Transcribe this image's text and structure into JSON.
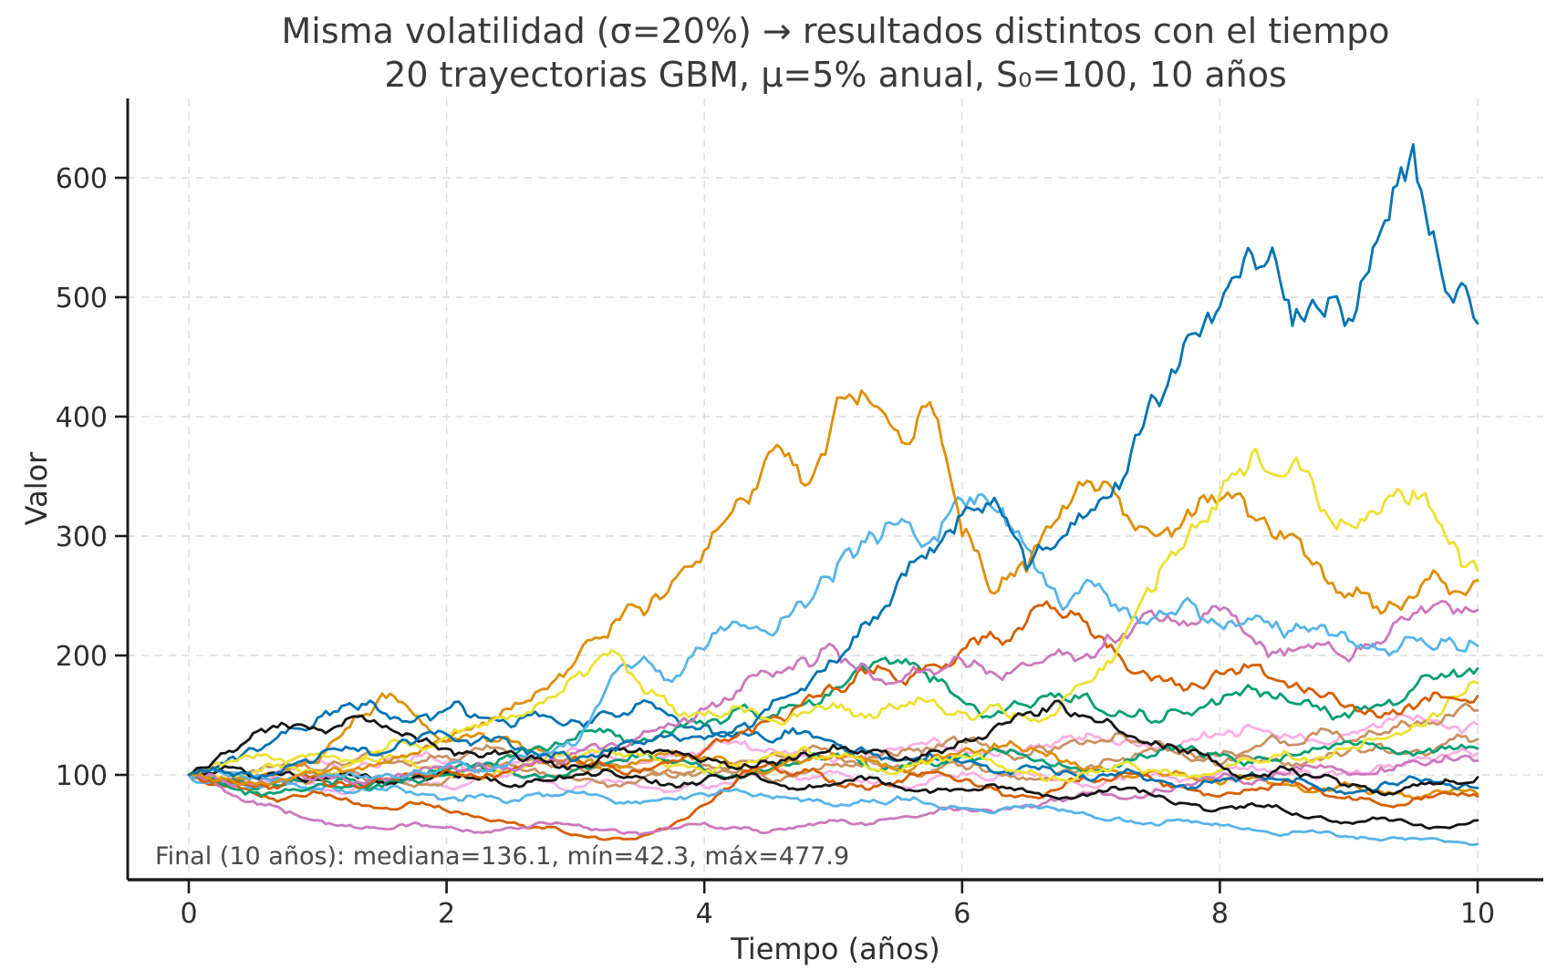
{
  "chart_data": {
    "type": "line",
    "title": "Misma volatilidad (σ=20%) → resultados distintos con el tiempo",
    "subtitle": "20 trayectorias GBM, μ=5% anual, S₀=100, 10 años",
    "xlabel": "Tiempo (años)",
    "ylabel": "Valor",
    "annotation": "Final (10 años): mediana=136.1, mín=42.3, máx=477.9",
    "xticks": [
      0,
      2,
      4,
      6,
      8,
      10
    ],
    "yticks": [
      100,
      200,
      300,
      400,
      500,
      600
    ],
    "xlim": [
      -0.5,
      10.5
    ],
    "ylim": [
      12,
      666
    ],
    "grid": true,
    "grid_style": "dashed",
    "legend_position": "none",
    "x_start_years": 0,
    "x_step_years": 0.25,
    "stats": {
      "median_final": 136.1,
      "min_final": 42.3,
      "max_final": 477.9
    },
    "series": [
      {
        "name": "trayectoria-lightpink-1",
        "color": "#fbafe4",
        "values": [
          100,
          104,
          98,
          104,
          110,
          104,
          110,
          116,
          110,
          104,
          110,
          116,
          122,
          116,
          110,
          116,
          122,
          128,
          122,
          116,
          110,
          116,
          122,
          128,
          122,
          116,
          122,
          128,
          134,
          128,
          122,
          128,
          134,
          140,
          134,
          128,
          134,
          140,
          146,
          140,
          142
        ]
      },
      {
        "name": "trayectoria-lightpink-2",
        "color": "#fbafe4",
        "values": [
          100,
          96,
          90,
          96,
          90,
          86,
          90,
          96,
          90,
          96,
          102,
          96,
          90,
          96,
          90,
          86,
          90,
          96,
          102,
          96,
          102,
          96,
          90,
          96,
          102,
          96,
          102,
          96,
          90,
          96,
          102,
          96,
          102,
          108,
          102,
          96,
          102,
          108,
          112,
          116,
          118
        ]
      },
      {
        "name": "trayectoria-tan-1",
        "color": "#ca9161",
        "values": [
          100,
          98,
          104,
          110,
          104,
          110,
          116,
          110,
          116,
          122,
          116,
          110,
          104,
          110,
          104,
          98,
          104,
          110,
          116,
          122,
          116,
          110,
          116,
          122,
          128,
          122,
          116,
          122,
          128,
          134,
          128,
          122,
          116,
          122,
          128,
          134,
          128,
          134,
          142,
          150,
          154
        ]
      },
      {
        "name": "trayectoria-tan-2",
        "color": "#ca9161",
        "values": [
          100,
          94,
          98,
          92,
          96,
          102,
          96,
          90,
          96,
          102,
          108,
          102,
          96,
          90,
          96,
          102,
          108,
          102,
          96,
          102,
          108,
          114,
          108,
          102,
          108,
          102,
          96,
          102,
          108,
          114,
          120,
          114,
          108,
          114,
          108,
          114,
          120,
          126,
          120,
          126,
          130
        ]
      },
      {
        "name": "trayectoria-verde-2",
        "color": "#029e73",
        "values": [
          100,
          94,
          88,
          92,
          96,
          90,
          94,
          99,
          104,
          110,
          104,
          98,
          104,
          110,
          116,
          110,
          104,
          98,
          104,
          110,
          116,
          110,
          104,
          110,
          116,
          122,
          116,
          110,
          104,
          110,
          116,
          122,
          116,
          110,
          116,
          122,
          128,
          122,
          116,
          122,
          122
        ]
      },
      {
        "name": "trayectoria-dorado-2",
        "color": "#de8f05",
        "values": [
          100,
          104,
          98,
          105,
          110,
          140,
          168,
          150,
          128,
          135,
          128,
          120,
          112,
          105,
          112,
          120,
          115,
          108,
          102,
          110,
          118,
          112,
          105,
          112,
          120,
          126,
          120,
          112,
          105,
          98,
          104,
          98,
          92,
          98,
          92,
          86,
          92,
          86,
          80,
          86,
          84
        ]
      },
      {
        "name": "trayectoria-bermellon-2",
        "color": "#d55e00",
        "values": [
          100,
          92,
          85,
          80,
          85,
          78,
          72,
          76,
          70,
          65,
          60,
          55,
          50,
          46,
          48,
          58,
          75,
          95,
          110,
          102,
          95,
          88,
          95,
          102,
          95,
          88,
          82,
          88,
          95,
          102,
          95,
          88,
          82,
          88,
          95,
          88,
          82,
          75,
          80,
          85,
          82
        ]
      },
      {
        "name": "trayectoria-rosa-2",
        "color": "#cc78bc",
        "values": [
          100,
          90,
          78,
          68,
          62,
          58,
          55,
          60,
          56,
          52,
          56,
          60,
          58,
          54,
          50,
          55,
          60,
          56,
          52,
          57,
          62,
          58,
          64,
          68,
          72,
          68,
          75,
          80,
          85,
          80,
          88,
          92,
          98,
          92,
          100,
          106,
          100,
          106,
          112,
          116,
          112
        ]
      },
      {
        "name": "trayectoria-celeste-2",
        "color": "#56b4e9",
        "values": [
          100,
          95,
          90,
          93,
          88,
          85,
          88,
          84,
          80,
          83,
          78,
          82,
          85,
          80,
          76,
          80,
          84,
          88,
          82,
          78,
          74,
          78,
          82,
          76,
          72,
          68,
          74,
          70,
          66,
          62,
          58,
          62,
          58,
          54,
          50,
          52,
          48,
          45,
          47,
          44,
          42
        ]
      },
      {
        "name": "trayectoria-azul-2",
        "color": "#0173b2",
        "values": [
          100,
          110,
          122,
          135,
          148,
          160,
          152,
          145,
          155,
          148,
          140,
          150,
          145,
          152,
          160,
          150,
          142,
          135,
          128,
          135,
          128,
          120,
          112,
          118,
          110,
          102,
          108,
          100,
          95,
          102,
          95,
          88,
          95,
          102,
          96,
          90,
          85,
          92,
          98,
          92,
          89
        ]
      },
      {
        "name": "trayectoria-amarillo-2",
        "color": "#ece133",
        "values": [
          100,
          96,
          102,
          108,
          102,
          108,
          114,
          108,
          102,
          96,
          102,
          110,
          116,
          122,
          116,
          108,
          102,
          108,
          116,
          122,
          116,
          108,
          102,
          110,
          116,
          110,
          102,
          96,
          104,
          110,
          104,
          98,
          104,
          112,
          120,
          114,
          122,
          130,
          142,
          158,
          177
        ]
      },
      {
        "name": "trayectoria-negro-2",
        "color": "#151515",
        "values": [
          100,
          105,
          98,
          102,
          96,
          100,
          94,
          98,
          102,
          96,
          90,
          95,
          100,
          104,
          98,
          92,
          96,
          100,
          94,
          88,
          92,
          96,
          90,
          85,
          88,
          92,
          86,
          80,
          84,
          88,
          82,
          76,
          72,
          76,
          70,
          65,
          60,
          64,
          58,
          56,
          62
        ]
      },
      {
        "name": "trayectoria-verde-1",
        "color": "#029e73",
        "values": [
          100,
          92,
          85,
          88,
          92,
          96,
          90,
          95,
          100,
          108,
          115,
          122,
          130,
          138,
          128,
          135,
          142,
          155,
          148,
          158,
          172,
          188,
          196,
          178,
          162,
          150,
          158,
          168,
          162,
          152,
          145,
          152,
          160,
          172,
          165,
          158,
          148,
          158,
          172,
          182,
          189
        ]
      },
      {
        "name": "trayectoria-bermellon-1",
        "color": "#d55e00",
        "values": [
          100,
          95,
          90,
          94,
          98,
          92,
          96,
          101,
          105,
          98,
          104,
          110,
          115,
          108,
          102,
          112,
          120,
          132,
          145,
          158,
          172,
          185,
          178,
          192,
          205,
          215,
          228,
          235,
          218,
          195,
          182,
          172,
          185,
          192,
          178,
          168,
          158,
          148,
          155,
          165,
          166
        ]
      },
      {
        "name": "trayectoria-rosa-1",
        "color": "#cc78bc",
        "values": [
          100,
          96,
          92,
          95,
          98,
          94,
          97,
          102,
          106,
          110,
          105,
          112,
          118,
          125,
          132,
          142,
          155,
          170,
          185,
          198,
          208,
          192,
          178,
          188,
          196,
          185,
          192,
          205,
          198,
          218,
          232,
          225,
          238,
          215,
          200,
          210,
          195,
          210,
          235,
          245,
          238
        ]
      },
      {
        "name": "trayectoria-celeste-1",
        "color": "#56b4e9",
        "values": [
          100,
          102,
          98,
          95,
          100,
          103,
          99,
          104,
          108,
          104,
          112,
          118,
          125,
          175,
          195,
          178,
          205,
          228,
          218,
          245,
          262,
          295,
          310,
          295,
          330,
          322,
          290,
          245,
          262,
          240,
          232,
          248,
          225,
          230,
          215,
          222,
          212,
          205,
          215,
          212,
          208
        ]
      },
      {
        "name": "trayectoria-dorado-1",
        "color": "#de8f05",
        "values": [
          100,
          97,
          93,
          96,
          100,
          104,
          110,
          118,
          128,
          140,
          155,
          172,
          195,
          215,
          240,
          262,
          288,
          330,
          370,
          345,
          400,
          418,
          388,
          412,
          300,
          252,
          270,
          315,
          345,
          318,
          300,
          322,
          330,
          316,
          298,
          278,
          252,
          235,
          248,
          260,
          263
        ]
      },
      {
        "name": "trayectoria-amarillo-1",
        "color": "#ece133",
        "values": [
          100,
          108,
          114,
          110,
          118,
          112,
          120,
          126,
          132,
          140,
          150,
          160,
          183,
          200,
          176,
          158,
          150,
          157,
          146,
          152,
          160,
          148,
          155,
          162,
          152,
          158,
          148,
          155,
          178,
          215,
          255,
          300,
          335,
          370,
          350,
          332,
          310,
          320,
          338,
          300,
          271
        ]
      },
      {
        "name": "trayectoria-negro-1",
        "color": "#151515",
        "values": [
          100,
          118,
          135,
          142,
          138,
          148,
          140,
          132,
          122,
          115,
          120,
          112,
          108,
          115,
          122,
          118,
          112,
          105,
          110,
          118,
          125,
          118,
          112,
          120,
          128,
          140,
          152,
          162,
          148,
          135,
          128,
          118,
          108,
          100,
          106,
          98,
          90,
          84,
          92,
          96,
          98
        ]
      },
      {
        "name": "trayectoria-azul-1",
        "color": "#0173b2",
        "values": [
          100,
          104,
          98,
          107,
          114,
          122,
          118,
          127,
          134,
          129,
          124,
          117,
          112,
          120,
          127,
          134,
          130,
          140,
          155,
          172,
          195,
          228,
          262,
          290,
          318,
          332,
          272,
          296,
          322,
          348,
          415,
          468,
          492,
          536,
          498,
          492,
          482,
          556,
          628,
          505,
          478
        ]
      }
    ]
  },
  "colors": {
    "background": "#ffffff",
    "grid": "#dcdcdc",
    "spine": "#1c1c1c",
    "tick_text": "#2e2e2e",
    "title_text": "#3a3a3a",
    "annotation_text": "#4a4a4a"
  }
}
